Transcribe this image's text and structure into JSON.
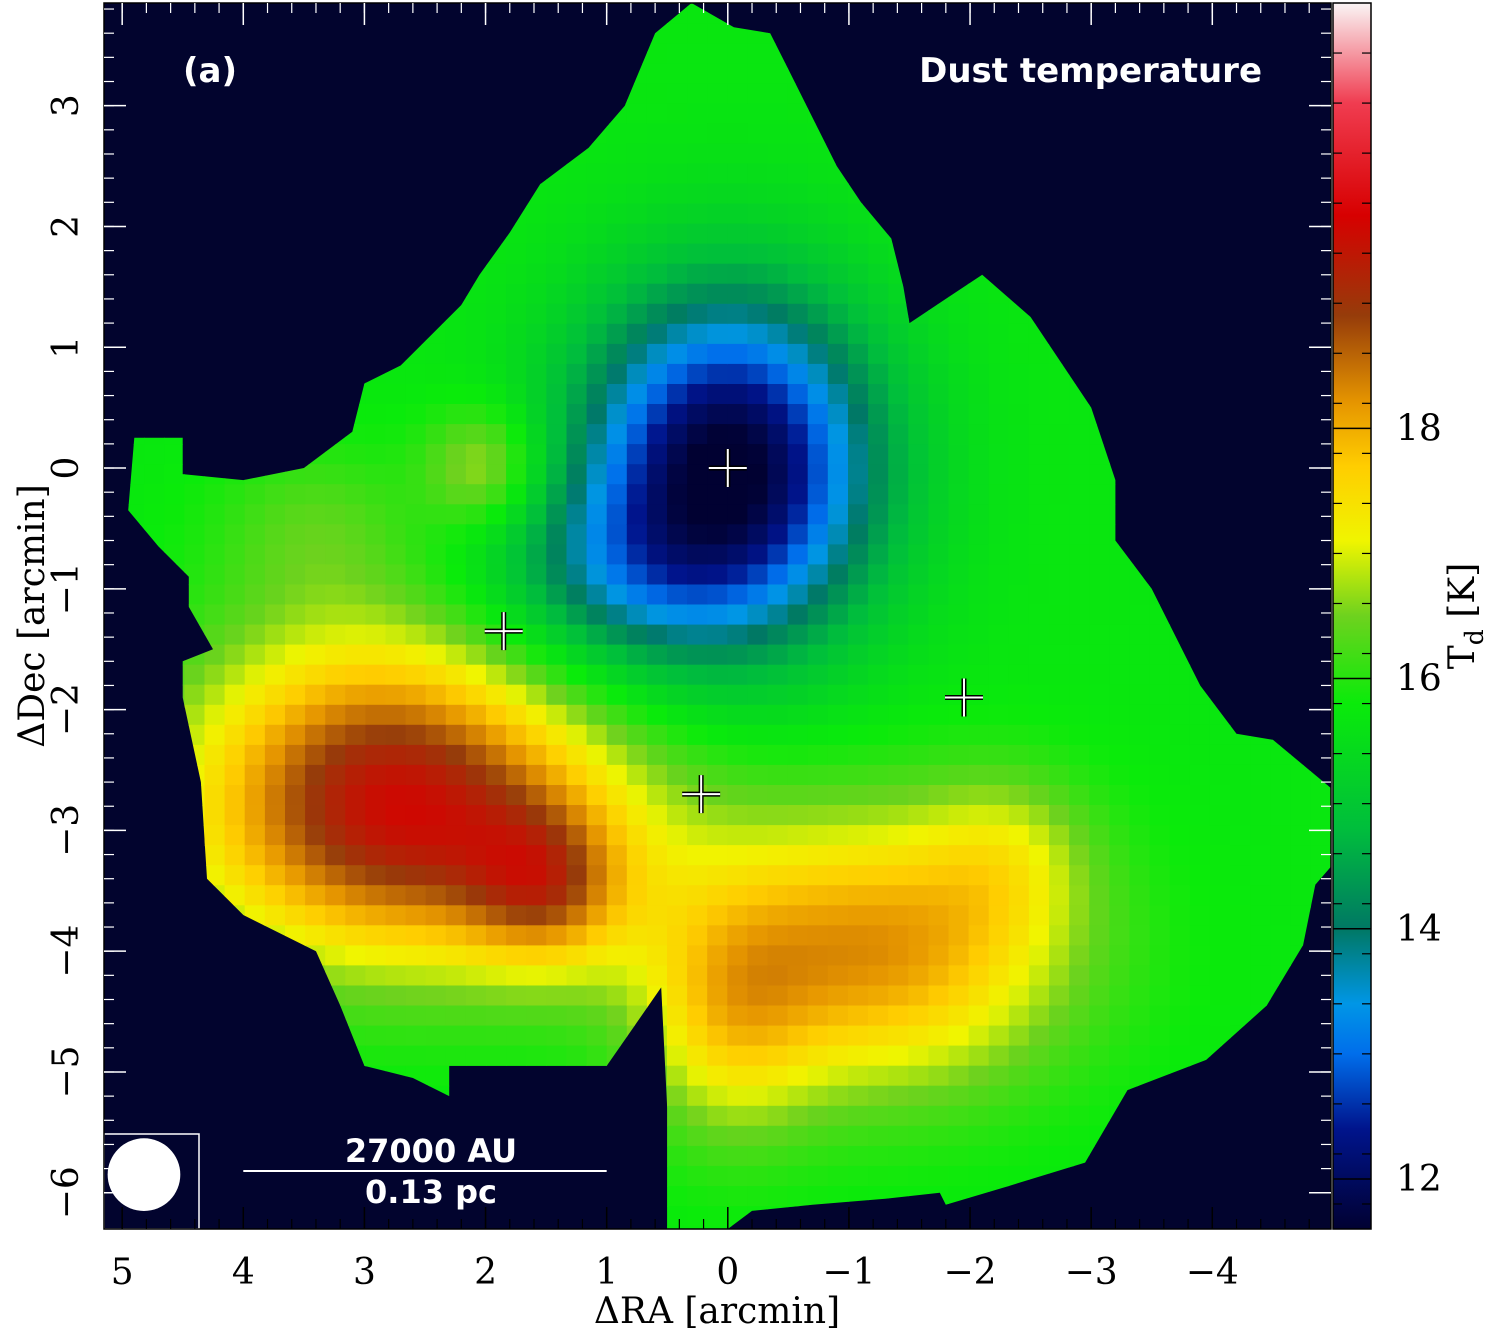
{
  "chart_data": {
    "type": "heatmap",
    "panel_label": "(a)",
    "title": "Dust temperature",
    "xlabel": "ΔRA [arcmin]",
    "ylabel": "ΔDec [arcmin]",
    "colorbar_label": "T",
    "colorbar_label_sub": "d",
    "colorbar_label_unit": "[K]",
    "xlim": [
      5.15,
      -4.98
    ],
    "ylim": [
      -6.3,
      3.85
    ],
    "clim": [
      11.6,
      21.4
    ],
    "x_ticks": [
      5,
      4,
      3,
      2,
      1,
      0,
      -1,
      -2,
      -3,
      -4
    ],
    "x_tick_labels": [
      "5",
      "4",
      "3",
      "2",
      "1",
      "0",
      "−1",
      "−2",
      "−3",
      "−4"
    ],
    "y_ticks": [
      3,
      2,
      1,
      0,
      -1,
      -2,
      -3,
      -4,
      -5,
      -6
    ],
    "y_tick_labels": [
      "3",
      "2",
      "1",
      "0",
      "−1",
      "−2",
      "−3",
      "−4",
      "−5",
      "−6"
    ],
    "colorbar_ticks": [
      12,
      14,
      16,
      18
    ],
    "colorbar_tick_labels": [
      "12",
      "14",
      "16",
      "18"
    ],
    "scale_bar": {
      "length_label": "27000 AU",
      "length_label_2": "0.13 pc",
      "x_from": 4.0,
      "x_to": 1.0,
      "y": -5.55
    },
    "beam": {
      "x": 4.82,
      "y": -5.85,
      "diameter_arcmin": 0.6
    },
    "markers": [
      {
        "x": 0.0,
        "y": 0.0
      },
      {
        "x": 1.85,
        "y": -1.35
      },
      {
        "x": -1.95,
        "y": -1.9
      },
      {
        "x": 0.22,
        "y": -2.7
      }
    ],
    "map_outline": [
      [
        4.9,
        0.25
      ],
      [
        4.95,
        -0.35
      ],
      [
        4.7,
        -0.65
      ],
      [
        4.45,
        -0.9
      ],
      [
        4.45,
        -1.15
      ],
      [
        4.25,
        -1.5
      ],
      [
        4.5,
        -1.6
      ],
      [
        4.5,
        -1.9
      ],
      [
        4.35,
        -2.6
      ],
      [
        4.3,
        -3.4
      ],
      [
        4.0,
        -3.7
      ],
      [
        3.4,
        -4.0
      ],
      [
        3.2,
        -4.45
      ],
      [
        3.0,
        -4.95
      ],
      [
        2.6,
        -5.05
      ],
      [
        2.3,
        -5.2
      ],
      [
        2.3,
        -4.95
      ],
      [
        1.0,
        -4.95
      ],
      [
        0.55,
        -4.3
      ],
      [
        0.5,
        -5.3
      ],
      [
        0.5,
        -6.3
      ],
      [
        0.0,
        -6.3
      ],
      [
        -0.2,
        -6.15
      ],
      [
        -0.7,
        -6.1
      ],
      [
        -1.3,
        -6.05
      ],
      [
        -1.75,
        -6.0
      ],
      [
        -1.8,
        -6.1
      ],
      [
        -2.3,
        -5.95
      ],
      [
        -2.95,
        -5.75
      ],
      [
        -3.3,
        -5.15
      ],
      [
        -3.95,
        -4.9
      ],
      [
        -4.45,
        -4.45
      ],
      [
        -4.75,
        -3.95
      ],
      [
        -4.85,
        -3.45
      ],
      [
        -4.98,
        -3.3
      ],
      [
        -4.98,
        -2.65
      ],
      [
        -4.5,
        -2.25
      ],
      [
        -4.2,
        -2.2
      ],
      [
        -3.9,
        -1.8
      ],
      [
        -3.5,
        -1.0
      ],
      [
        -3.2,
        -0.6
      ],
      [
        -3.2,
        -0.1
      ],
      [
        -3.0,
        0.5
      ],
      [
        -2.5,
        1.25
      ],
      [
        -2.1,
        1.6
      ],
      [
        -1.8,
        1.4
      ],
      [
        -1.5,
        1.2
      ],
      [
        -1.45,
        1.5
      ],
      [
        -1.35,
        1.9
      ],
      [
        -1.1,
        2.2
      ],
      [
        -0.9,
        2.5
      ],
      [
        -0.75,
        2.8
      ],
      [
        -0.5,
        3.3
      ],
      [
        -0.35,
        3.6
      ],
      [
        -0.05,
        3.65
      ],
      [
        0.3,
        3.85
      ],
      [
        0.6,
        3.6
      ],
      [
        0.85,
        3.0
      ],
      [
        1.15,
        2.65
      ],
      [
        1.55,
        2.35
      ],
      [
        1.8,
        1.95
      ],
      [
        2.05,
        1.6
      ],
      [
        2.2,
        1.35
      ],
      [
        2.5,
        1.05
      ],
      [
        2.7,
        0.85
      ],
      [
        3.0,
        0.7
      ],
      [
        3.1,
        0.3
      ],
      [
        3.5,
        0.0
      ],
      [
        4.0,
        -0.1
      ],
      [
        4.5,
        -0.05
      ],
      [
        4.5,
        0.25
      ]
    ],
    "field_components": [
      {
        "x": 0.0,
        "y": 0.0,
        "sx": 0.85,
        "sy": 1.0,
        "amp": -4.2
      },
      {
        "x": 1.0,
        "y": -0.9,
        "sx": 0.75,
        "sy": 0.55,
        "amp": -1.1
      },
      {
        "x": 2.6,
        "y": -3.0,
        "sx": 1.3,
        "sy": 0.8,
        "amp": 3.4
      },
      {
        "x": 1.5,
        "y": -3.5,
        "sx": 0.45,
        "sy": 0.45,
        "amp": 1.5
      },
      {
        "x": 3.0,
        "y": -2.0,
        "sx": 1.0,
        "sy": 0.7,
        "amp": 1.2
      },
      {
        "x": -1.2,
        "y": -4.0,
        "sx": 1.1,
        "sy": 0.8,
        "amp": 2.5
      },
      {
        "x": 0.0,
        "y": -4.6,
        "sx": 0.5,
        "sy": 0.7,
        "amp": 1.2
      },
      {
        "x": -2.3,
        "y": -3.2,
        "sx": 0.5,
        "sy": 0.5,
        "amp": 0.8
      },
      {
        "x": 3.4,
        "y": -0.5,
        "sx": 0.6,
        "sy": 0.5,
        "amp": 0.6
      },
      {
        "x": 2.0,
        "y": 0.0,
        "sx": 0.35,
        "sy": 0.35,
        "amp": 1.2
      }
    ],
    "field_base": 15.7,
    "grid": false
  }
}
